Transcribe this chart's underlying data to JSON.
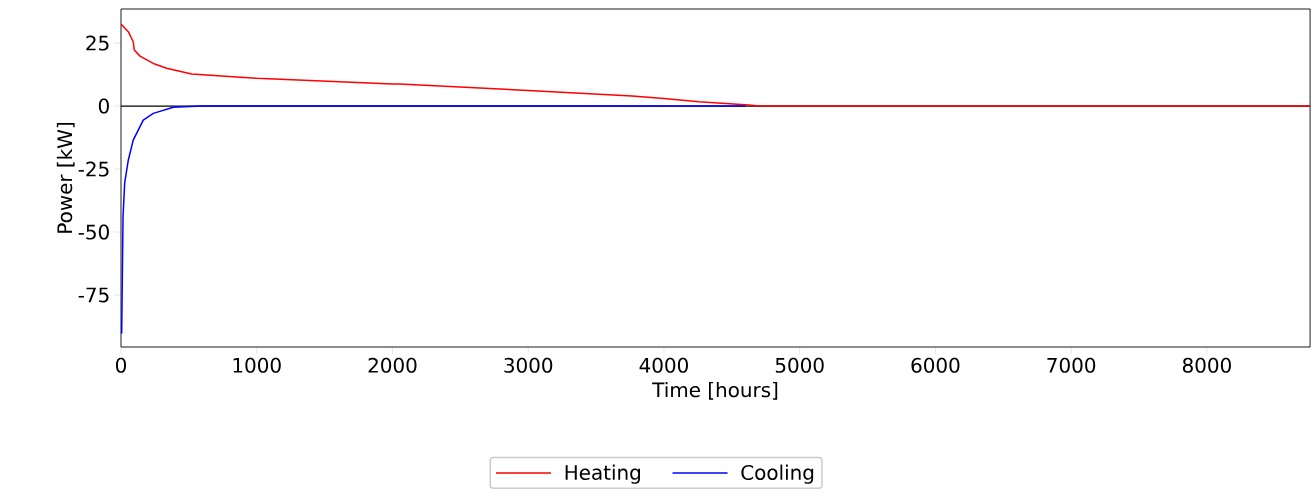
{
  "chart_data": {
    "type": "line",
    "xlabel": "Time [hours]",
    "ylabel": "Power [kW]",
    "xlim": [
      0,
      8760
    ],
    "ylim": [
      -95.6,
      38.5
    ],
    "xticks": [
      0,
      1000,
      2000,
      3000,
      4000,
      5000,
      6000,
      7000,
      8000
    ],
    "yticks": [
      -75,
      -50,
      -25,
      0,
      25
    ],
    "grid": false,
    "legend": "bottom",
    "marker": "none",
    "line_style": "solid",
    "ref_lines": [
      {
        "axis": "y",
        "value": 0,
        "color": "#000000"
      }
    ],
    "series": [
      {
        "name": "Heating",
        "color": "#ff0000",
        "x": [
          0,
          54,
          90,
          98,
          140,
          238,
          336,
          520,
          1000,
          2000,
          2051,
          3000,
          3765,
          4000,
          4257,
          4625,
          4700,
          8760
        ],
        "values": [
          32.5,
          29.5,
          25.5,
          22.2,
          19.8,
          16.9,
          15,
          12.7,
          11,
          8.7,
          8.7,
          6.2,
          4.0,
          3.0,
          1.7,
          0.4,
          0,
          0
        ]
      },
      {
        "name": "Cooling",
        "color": "#0000ff",
        "x": [
          0,
          5,
          15,
          27,
          54,
          90,
          164,
          238,
          385,
          590,
          4600
        ],
        "values": [
          -90,
          -90,
          -43.9,
          -30.6,
          -21.4,
          -13.5,
          -5.6,
          -2.9,
          -0.5,
          0,
          0
        ]
      }
    ]
  }
}
